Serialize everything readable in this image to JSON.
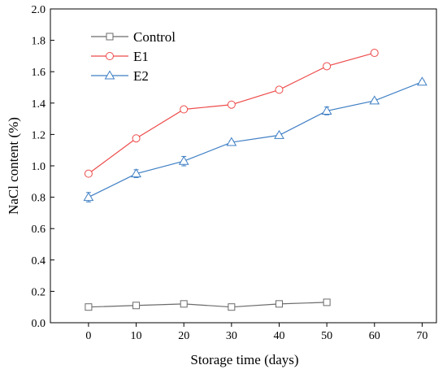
{
  "chart_data": {
    "type": "line",
    "title": "",
    "xlabel": "Storage time (days)",
    "ylabel": "NaCl content (%)",
    "xlim": [
      -8,
      73
    ],
    "ylim": [
      0,
      2.0
    ],
    "x_ticks": [
      0,
      10,
      20,
      30,
      40,
      50,
      60,
      70
    ],
    "y_ticks": [
      0.0,
      0.2,
      0.4,
      0.6,
      0.8,
      1.0,
      1.2,
      1.4,
      1.6,
      1.8,
      2.0
    ],
    "x_tick_labels": [
      "0",
      "10",
      "20",
      "30",
      "40",
      "50",
      "60",
      "70"
    ],
    "y_tick_labels": [
      "0.0",
      "0.2",
      "0.4",
      "0.6",
      "0.8",
      "1.0",
      "1.2",
      "1.4",
      "1.6",
      "1.8",
      "2.0"
    ],
    "grid": false,
    "legend_position": "top-left",
    "series": [
      {
        "name": "Control",
        "color": "#6b6b6b",
        "marker": "square",
        "x": [
          0,
          10,
          20,
          30,
          40,
          50
        ],
        "values": [
          0.1,
          0.11,
          0.12,
          0.1,
          0.12,
          0.13
        ],
        "errors": [
          0.005,
          0.005,
          0.005,
          0.005,
          0.005,
          0.008
        ]
      },
      {
        "name": "E1",
        "color": "#ee4b4b",
        "marker": "circle",
        "x": [
          0,
          10,
          20,
          30,
          40,
          50,
          60
        ],
        "values": [
          0.95,
          1.175,
          1.36,
          1.39,
          1.485,
          1.635,
          1.72
        ],
        "errors": [
          0.01,
          0.01,
          0.01,
          0.01,
          0.01,
          0.01,
          0.01
        ]
      },
      {
        "name": "E2",
        "color": "#3f7fc4",
        "marker": "triangle",
        "x": [
          0,
          10,
          20,
          30,
          40,
          50,
          60,
          70
        ],
        "values": [
          0.8,
          0.95,
          1.03,
          1.15,
          1.195,
          1.35,
          1.415,
          1.535
        ],
        "errors": [
          0.03,
          0.025,
          0.03,
          0.01,
          0.01,
          0.025,
          0.01,
          0.01
        ]
      }
    ]
  }
}
